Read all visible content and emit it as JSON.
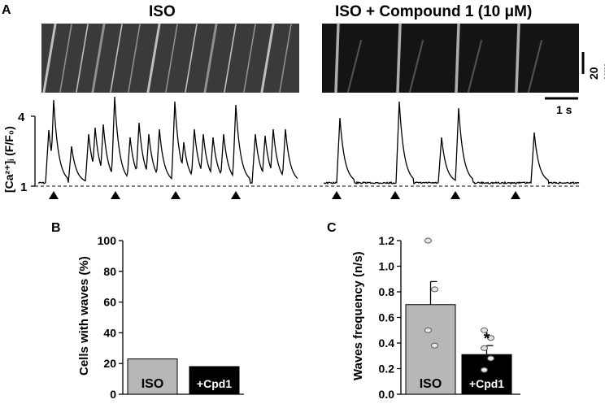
{
  "panels": {
    "A": {
      "letter": "A",
      "left_title": "ISO",
      "right_title": "ISO + Compound 1 (10 μM)",
      "scalebar_vertical": "20 μm",
      "scalebar_horizontal": "1 s",
      "ylabel": "[Ca²⁺]ᵢ (F/F₀)",
      "y_ticks": [
        "4",
        "1"
      ]
    },
    "B": {
      "letter": "B"
    },
    "C": {
      "letter": "C"
    }
  },
  "chart_data": [
    {
      "panel": "B",
      "type": "bar",
      "categories": [
        "ISO",
        "+Cpd1"
      ],
      "values": [
        23,
        18
      ],
      "ylabel": "Cells with waves (%)",
      "ylim": [
        0,
        100
      ],
      "yticks": [
        0,
        20,
        40,
        60,
        80,
        100
      ],
      "bar_colors": [
        "#b7b7b7",
        "#000000"
      ]
    },
    {
      "panel": "C",
      "type": "bar",
      "categories": [
        "ISO",
        "+Cpd1"
      ],
      "values": [
        0.7,
        0.31
      ],
      "errors": [
        0.18,
        0.07
      ],
      "points": [
        [
          1.2,
          0.82,
          0.5,
          0.38
        ],
        [
          0.5,
          0.44,
          0.36,
          0.28,
          0.19
        ]
      ],
      "annotation": "*",
      "ylabel": "Waves frequency (n/s)",
      "ylim": [
        0,
        1.2
      ],
      "yticks": [
        0,
        0.2,
        0.4,
        0.6,
        0.8,
        1.0,
        1.2
      ],
      "bar_colors": [
        "#b7b7b7",
        "#000000"
      ]
    }
  ]
}
